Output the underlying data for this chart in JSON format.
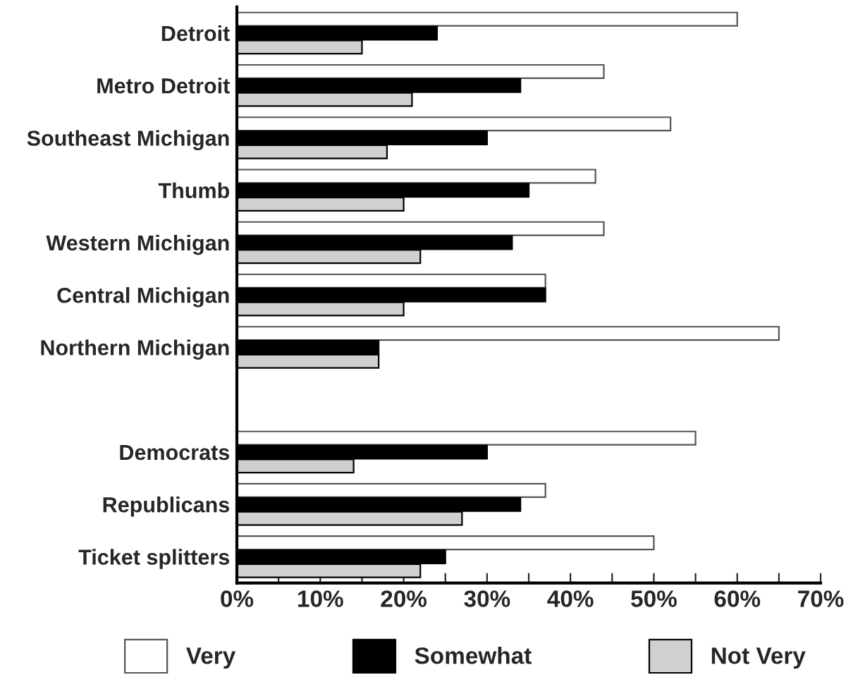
{
  "chart_data": {
    "type": "bar",
    "orientation": "horizontal",
    "categories": [
      "Detroit",
      "Metro Detroit",
      "Southeast Michigan",
      "Thumb",
      "Western Michigan",
      "Central Michigan",
      "Northern Michigan",
      null,
      "Democrats",
      "Republicans",
      "Ticket splitters"
    ],
    "series": [
      {
        "name": "Very",
        "color": "#ffffff",
        "values": [
          60,
          44,
          52,
          43,
          44,
          37,
          65,
          null,
          55,
          37,
          50
        ]
      },
      {
        "name": "Somewhat",
        "color": "#000000",
        "values": [
          24,
          34,
          30,
          35,
          33,
          37,
          17,
          null,
          30,
          34,
          25
        ]
      },
      {
        "name": "Not Very",
        "color": "#d0d0d0",
        "values": [
          15,
          21,
          18,
          20,
          22,
          20,
          17,
          null,
          14,
          27,
          22
        ]
      }
    ],
    "xlim": [
      0,
      70
    ],
    "xticks": [
      {
        "value": 0,
        "label": "0%"
      },
      {
        "value": 5,
        "label": null
      },
      {
        "value": 10,
        "label": "10%"
      },
      {
        "value": 15,
        "label": null
      },
      {
        "value": 20,
        "label": "20%"
      },
      {
        "value": 25,
        "label": null
      },
      {
        "value": 30,
        "label": "30%"
      },
      {
        "value": 35,
        "label": null
      },
      {
        "value": 40,
        "label": "40%"
      },
      {
        "value": 45,
        "label": null
      },
      {
        "value": 50,
        "label": "50%"
      },
      {
        "value": 55,
        "label": null
      },
      {
        "value": 60,
        "label": "60%"
      },
      {
        "value": 65,
        "label": null
      },
      {
        "value": 70,
        "label": "70%"
      }
    ],
    "grid": false,
    "legend": "bottom"
  }
}
